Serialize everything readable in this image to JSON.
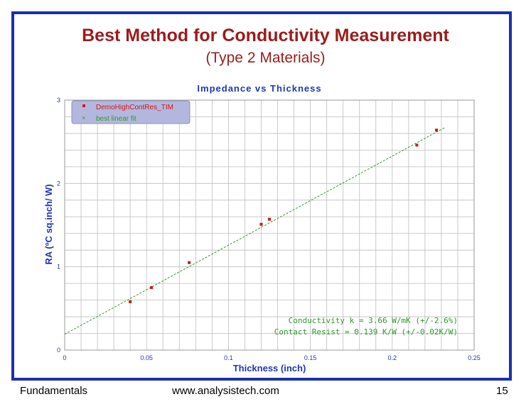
{
  "slide": {
    "title": "Best Method for Conductivity Measurement",
    "subtitle": "(Type 2 Materials)",
    "footer_left": "Fundamentals",
    "footer_center": "www.analysistech.com",
    "footer_right": "15"
  },
  "chart_data": {
    "type": "scatter",
    "title": "Impedance vs Thickness",
    "xlabel": "Thickness (inch)",
    "ylabel": "RA (ºC sq.inch/ W)",
    "xlim": [
      0,
      0.25
    ],
    "ylim": [
      0,
      3
    ],
    "xticks": [
      "0",
      "0.05",
      "0.1",
      "0.15",
      "0.2",
      "0.25"
    ],
    "yticks": [
      "0",
      "1",
      "2",
      "3"
    ],
    "grid": true,
    "legend_position": "top-left",
    "series": [
      {
        "name": "DemoHighContRes_TIM",
        "marker": "square",
        "color": "#d01818",
        "x": [
          0.04,
          0.053,
          0.076,
          0.12,
          0.125,
          0.215,
          0.227
        ],
        "y": [
          0.58,
          0.75,
          1.05,
          1.51,
          1.57,
          2.46,
          2.64
        ]
      },
      {
        "name": "best linear fit",
        "marker": "x",
        "type": "line",
        "style": "dashed",
        "color": "#2e9a2e",
        "x": [
          0.0,
          0.232
        ],
        "y": [
          0.19,
          2.67
        ]
      }
    ],
    "annotations": [
      "Conductivity k = 3.66 W/mK (+/-2.6%)",
      "Contact Resist = 0.139 K/W (+/-0.02K/W)"
    ],
    "colors": {
      "axis_text": "#1f36b8",
      "grid": "#bdbdbd",
      "legend_bg": "#b4b7dd",
      "annotation": "#2e9a2e"
    }
  }
}
